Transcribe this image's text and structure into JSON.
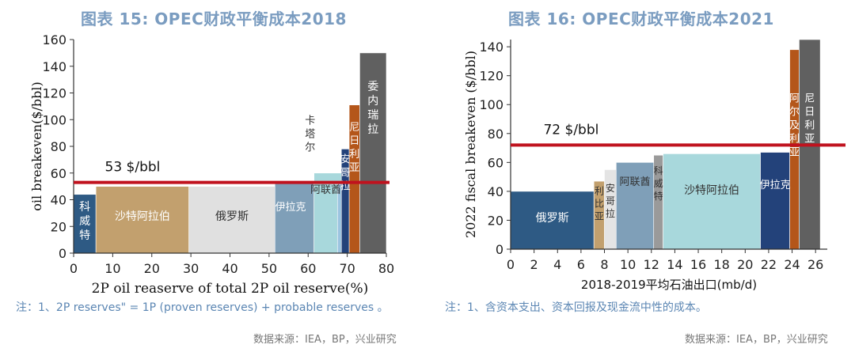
{
  "charts": {
    "left": {
      "figure_title": "图表 15: OPEC财政平衡成本2018",
      "note": "注：1、2P reserves\" = 1P (proven reserves) + probable reserves 。",
      "source": "数据来源：IEA，BP，兴业研究"
    },
    "right": {
      "figure_title": "图表 16: OPEC财政平衡成本2021",
      "note": "注：1、含资本支出、资本回报及现金流中性的成本。",
      "source": "数据来源：IEA，BP，兴业研究"
    }
  },
  "chart_data": [
    {
      "type": "bar",
      "title": "图表 15: OPEC财政平衡成本2018",
      "xlabel": "2P oil reaserve of total 2P oil reserve(%)",
      "ylabel": "oil breakeven($/bbl)",
      "xlim": [
        0,
        80
      ],
      "ylim": [
        0,
        160
      ],
      "xticks": [
        0,
        10,
        20,
        30,
        40,
        50,
        60,
        70,
        80
      ],
      "yticks": [
        0,
        20,
        40,
        60,
        80,
        100,
        120,
        140,
        160
      ],
      "grid": false,
      "bars": [
        {
          "name": "科威特",
          "x0": 0,
          "x1": 5.7,
          "value": 44,
          "color": "#2e5a84",
          "label_color": "#ffffff"
        },
        {
          "name": "沙特阿拉伯",
          "x0": 5.7,
          "x1": 29.5,
          "value": 50,
          "color": "#c2a06e",
          "label_color": "#ffffff"
        },
        {
          "name": "俄罗斯",
          "x0": 29.5,
          "x1": 51.5,
          "value": 50,
          "color": "#e0e0e0",
          "label_color": "#333333"
        },
        {
          "name": "伊拉克",
          "x0": 51.5,
          "x1": 61.5,
          "value": 54,
          "color": "#7f9fb8",
          "label_color": "#ffffff"
        },
        {
          "name": "阿联酋",
          "x0": 61.5,
          "x1": 68.5,
          "value": 60,
          "color": "#a8d8dc",
          "label_color": "#333333"
        },
        {
          "name": "安哥拉",
          "x0": 68.5,
          "x1": 70.5,
          "value": 78,
          "color": "#23427a",
          "label_color": "#ffffff"
        },
        {
          "name": "卡塔尔",
          "x0": 67.5,
          "x1": 68.5,
          "value": 52,
          "color": "#9cc4e0",
          "label_color": "#333333"
        },
        {
          "name": "尼日利亚",
          "x0": 70.5,
          "x1": 73.2,
          "value": 111,
          "color": "#b4561a",
          "label_color": "#ffffff"
        },
        {
          "name": "委内瑞拉",
          "x0": 73.2,
          "x1": 80,
          "value": 150,
          "color": "#606060",
          "label_color": "#ffffff"
        }
      ],
      "reference_line": {
        "value": 53,
        "label": "53 $/bbl",
        "color": "#c0121e"
      }
    },
    {
      "type": "bar",
      "title": "图表 16: OPEC财政平衡成本2021",
      "xlabel": "2018-2019平均石油出口(mb/d)",
      "ylabel": "2022 fiscal breakeven ($/bbl)",
      "xlim": [
        0,
        27
      ],
      "ylim": [
        0,
        145
      ],
      "xticks": [
        0,
        2,
        4,
        6,
        8,
        10,
        12,
        14,
        16,
        18,
        20,
        22,
        24,
        26
      ],
      "yticks": [
        0,
        20,
        40,
        60,
        80,
        100,
        120,
        140
      ],
      "grid": false,
      "bars": [
        {
          "name": "俄罗斯",
          "x0": 0,
          "x1": 7.1,
          "value": 40,
          "color": "#2e5a84",
          "label_color": "#ffffff"
        },
        {
          "name": "利比亚",
          "x0": 7.1,
          "x1": 8.0,
          "value": 47,
          "color": "#c2a06e",
          "label_color": "#333333"
        },
        {
          "name": "安哥拉",
          "x0": 8.0,
          "x1": 9.0,
          "value": 55,
          "color": "#e4e4e4",
          "label_color": "#333333"
        },
        {
          "name": "阿联酋",
          "x0": 9.0,
          "x1": 12.2,
          "value": 60,
          "color": "#7f9fb8",
          "label_color": "#333333"
        },
        {
          "name": "科威特",
          "x0": 12.2,
          "x1": 13.0,
          "value": 65,
          "color": "#9a9a9a",
          "label_color": "#333333"
        },
        {
          "name": "沙特阿拉伯",
          "x0": 13.0,
          "x1": 21.3,
          "value": 66,
          "color": "#a8d8dc",
          "label_color": "#333333"
        },
        {
          "name": "伊拉克",
          "x0": 21.3,
          "x1": 23.8,
          "value": 67,
          "color": "#23427a",
          "label_color": "#ffffff"
        },
        {
          "name": "阿尔及利亚",
          "x0": 23.8,
          "x1": 24.6,
          "value": 138,
          "color": "#b4561a",
          "label_color": "#ffffff"
        },
        {
          "name": "尼日利亚",
          "x0": 24.6,
          "x1": 26.4,
          "value": 145,
          "color": "#606060",
          "label_color": "#ffffff"
        }
      ],
      "reference_line": {
        "value": 72,
        "label": "72 $/bbl",
        "color": "#c0121e"
      }
    }
  ]
}
